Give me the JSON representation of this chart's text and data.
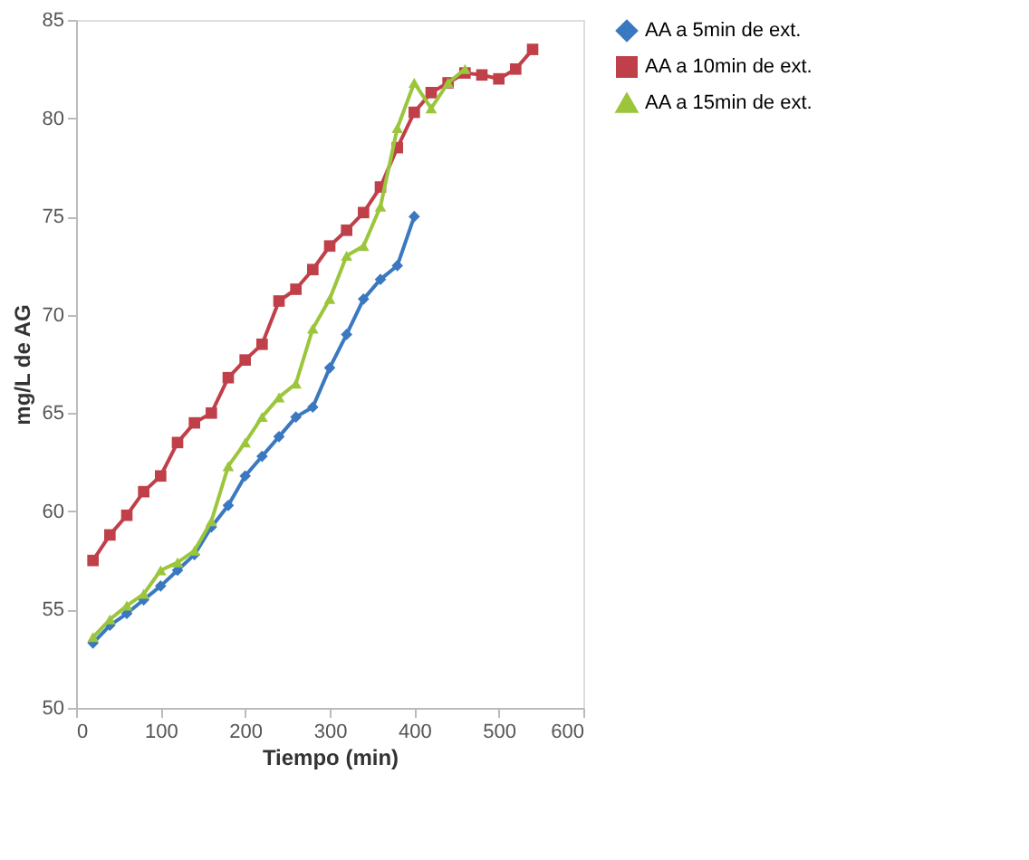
{
  "chart_data": {
    "type": "line",
    "xlabel": "Tiempo (min)",
    "ylabel": "mg/L de AG",
    "xlim": [
      0,
      600
    ],
    "xticks": [
      0,
      100,
      200,
      300,
      400,
      500,
      600
    ],
    "ylim": [
      50,
      85
    ],
    "yticks": [
      50,
      55,
      60,
      65,
      70,
      75,
      80,
      85
    ],
    "grid": false,
    "legend": "right",
    "series": [
      {
        "name": "AA a 5min de ext.",
        "color": "#3a78c0",
        "marker": "diamond",
        "x": [
          20,
          40,
          60,
          80,
          100,
          120,
          140,
          160,
          180,
          200,
          220,
          240,
          260,
          280,
          300,
          320,
          340,
          360,
          380,
          400
        ],
        "values": [
          53.3,
          54.2,
          54.8,
          55.5,
          56.2,
          57,
          57.8,
          59.2,
          60.3,
          61.8,
          62.8,
          63.8,
          64.8,
          65.3,
          67.3,
          69,
          70.8,
          71.8,
          72.5,
          75
        ]
      },
      {
        "name": "AA a 10min de ext.",
        "color": "#c0404a",
        "marker": "square",
        "x": [
          20,
          40,
          60,
          80,
          100,
          120,
          140,
          160,
          180,
          200,
          220,
          240,
          260,
          280,
          300,
          320,
          340,
          360,
          380,
          400,
          420,
          440,
          460,
          480,
          500,
          520,
          540
        ],
        "values": [
          57.5,
          58.8,
          59.8,
          61,
          61.8,
          63.5,
          64.5,
          65,
          66.8,
          67.7,
          68.5,
          70.7,
          71.3,
          72.3,
          73.5,
          74.3,
          75.2,
          76.5,
          78.5,
          80.3,
          81.3,
          81.8,
          82.3,
          82.2,
          82,
          82.5,
          83.5
        ]
      },
      {
        "name": "AA a 15min de ext.",
        "color": "#9bc63c",
        "marker": "triangle",
        "x": [
          20,
          40,
          60,
          80,
          100,
          120,
          140,
          160,
          180,
          200,
          220,
          240,
          260,
          280,
          300,
          320,
          340,
          360,
          380,
          400,
          420,
          440,
          460
        ],
        "values": [
          53.6,
          54.5,
          55.2,
          55.8,
          57,
          57.4,
          58,
          59.5,
          62.3,
          63.5,
          64.8,
          65.8,
          66.5,
          69.3,
          70.8,
          73,
          73.5,
          75.5,
          79.5,
          81.8,
          80.5,
          81.8,
          82.5
        ]
      }
    ]
  }
}
